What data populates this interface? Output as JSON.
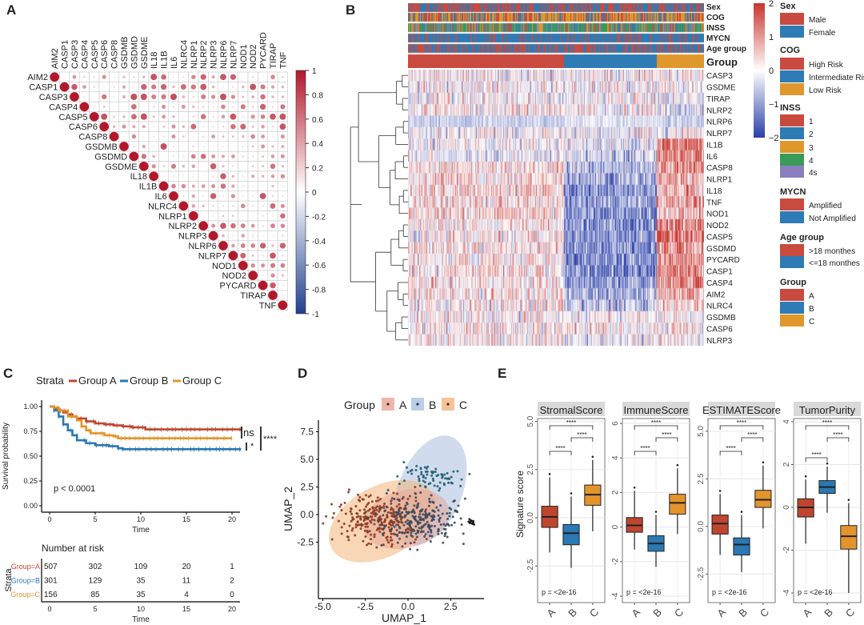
{
  "panel_labels": {
    "a": "A",
    "b": "B",
    "c": "C",
    "d": "D",
    "e": "E"
  },
  "chart_data": [
    {
      "panel": "A",
      "type": "heatmap",
      "title": "",
      "labels": [
        "AIM2",
        "CASP1",
        "CASP3",
        "CASP4",
        "CASP5",
        "CASP6",
        "CASP8",
        "GSDMB",
        "GSDMD",
        "GSDME",
        "IL18",
        "IL1B",
        "IL6",
        "NLRC4",
        "NLRP1",
        "NLRP2",
        "NLRP3",
        "NLRP6",
        "NLRP7",
        "NOD1",
        "NOD2",
        "PYCARD",
        "TIRAP",
        "TNF"
      ],
      "value_range": [
        -1,
        1
      ],
      "colorbar_ticks": [
        "1",
        "0.8",
        "0.6",
        "0.4",
        "0.2",
        "0",
        "-0.2",
        "-0.4",
        "-0.6",
        "-0.8",
        "-1"
      ],
      "colors": {
        "pos": "#b2182b",
        "neg": "#2166ac",
        "mid": "#ffffff"
      }
    },
    {
      "panel": "B",
      "type": "heatmap",
      "annotation_tracks": [
        "Sex",
        "COG",
        "INSS",
        "MYCN",
        "Age group",
        "Group"
      ],
      "genes": [
        "CASP3",
        "GSDME",
        "TIRAP",
        "NLRP2",
        "NLRP6",
        "NLRP7",
        "IL1B",
        "IL6",
        "CASP8",
        "NLRP1",
        "IL18",
        "TNF",
        "NOD1",
        "NOD2",
        "CASP5",
        "GSDMD",
        "PYCARD",
        "CASP1",
        "CASP4",
        "AIM2",
        "NLRC4",
        "GSDMB",
        "CASP6",
        "NLRP3"
      ],
      "group_sizes": {
        "A": 507,
        "B": 301,
        "C": 156
      },
      "group_means": [
        [
          0.1,
          0,
          0.1
        ],
        [
          0,
          0,
          0
        ],
        [
          0,
          0,
          -0.1
        ],
        [
          0.1,
          0,
          -0.2
        ],
        [
          -0.4,
          -0.2,
          -0.4
        ],
        [
          0,
          0,
          0
        ],
        [
          0,
          -0.2,
          1.0
        ],
        [
          -0.2,
          -0.3,
          0.9
        ],
        [
          0.2,
          -0.5,
          0.8
        ],
        [
          0.3,
          -0.6,
          0.6
        ],
        [
          0.3,
          -0.8,
          0.5
        ],
        [
          0.2,
          -0.7,
          0.6
        ],
        [
          0.3,
          -0.8,
          0.4
        ],
        [
          0.1,
          -0.9,
          1.0
        ],
        [
          0.1,
          -0.8,
          1.0
        ],
        [
          0.2,
          -0.9,
          0.8
        ],
        [
          0.2,
          -0.9,
          0.8
        ],
        [
          0.2,
          -0.9,
          1.0
        ],
        [
          0.2,
          -0.8,
          0.9
        ],
        [
          0.2,
          -0.6,
          0.5
        ],
        [
          0.1,
          -0.4,
          0.3
        ],
        [
          0,
          0,
          0
        ],
        [
          0.1,
          0.1,
          0
        ],
        [
          0.1,
          -0.1,
          0
        ]
      ],
      "value_range": [
        -2,
        2
      ],
      "colorbar_ticks": [
        "2",
        "1",
        "0",
        "−1",
        "−2"
      ],
      "legend": [
        {
          "title": "Sex",
          "items": [
            {
              "label": "Male",
              "color": "#c94a3f"
            },
            {
              "label": "Female",
              "color": "#2e7bb5"
            }
          ]
        },
        {
          "title": "COG",
          "items": [
            {
              "label": "High Risk",
              "color": "#c94a3f"
            },
            {
              "label": "Intermediate Risk",
              "color": "#2e7bb5"
            },
            {
              "label": "Low Risk",
              "color": "#e0972c"
            }
          ]
        },
        {
          "title": "INSS",
          "items": [
            {
              "label": "1",
              "color": "#c94a3f"
            },
            {
              "label": "2",
              "color": "#2e7bb5"
            },
            {
              "label": "3",
              "color": "#e0972c"
            },
            {
              "label": "4",
              "color": "#3a9a5a"
            },
            {
              "label": "4s",
              "color": "#8a7fbf"
            }
          ]
        },
        {
          "title": "MYCN",
          "items": [
            {
              "label": "Amplified",
              "color": "#c94a3f"
            },
            {
              "label": "Not Amplified",
              "color": "#2e7bb5"
            }
          ]
        },
        {
          "title": "Age group",
          "items": [
            {
              "label": ">18 monthes",
              "color": "#c94a3f"
            },
            {
              "label": "<=18 monthes",
              "color": "#2e7bb5"
            }
          ]
        },
        {
          "title": "Group",
          "items": [
            {
              "label": "A",
              "color": "#c94a3f"
            },
            {
              "label": "B",
              "color": "#2e7bb5"
            },
            {
              "label": "C",
              "color": "#e0972c"
            }
          ]
        }
      ]
    },
    {
      "panel": "C",
      "type": "line",
      "legend_title": "Strata",
      "series": [
        {
          "name": "Group A",
          "color": "#c0452f",
          "points": [
            [
              0,
              1
            ],
            [
              0.5,
              0.98
            ],
            [
              1,
              0.96
            ],
            [
              1.5,
              0.94
            ],
            [
              2,
              0.92
            ],
            [
              2.5,
              0.9
            ],
            [
              3,
              0.88
            ],
            [
              4,
              0.85
            ],
            [
              5,
              0.83
            ],
            [
              6,
              0.82
            ],
            [
              7,
              0.81
            ],
            [
              8,
              0.8
            ],
            [
              9,
              0.79
            ],
            [
              10.5,
              0.77
            ],
            [
              21,
              0.77
            ]
          ]
        },
        {
          "name": "Group B",
          "color": "#2a78b4",
          "points": [
            [
              0,
              1
            ],
            [
              0.5,
              0.96
            ],
            [
              1,
              0.9
            ],
            [
              1.5,
              0.82
            ],
            [
              2,
              0.76
            ],
            [
              2.5,
              0.71
            ],
            [
              3,
              0.66
            ],
            [
              4,
              0.63
            ],
            [
              5,
              0.61
            ],
            [
              6,
              0.61
            ],
            [
              6.5,
              0.6
            ],
            [
              7.5,
              0.58
            ],
            [
              8,
              0.57
            ],
            [
              21,
              0.57
            ]
          ]
        },
        {
          "name": "Group C",
          "color": "#e3942c",
          "points": [
            [
              0,
              1
            ],
            [
              0.5,
              0.99
            ],
            [
              1,
              0.96
            ],
            [
              2,
              0.9
            ],
            [
              3,
              0.86
            ],
            [
              3.5,
              0.8
            ],
            [
              4,
              0.76
            ],
            [
              4.5,
              0.73
            ],
            [
              6,
              0.71
            ],
            [
              7,
              0.7
            ],
            [
              7.5,
              0.68
            ],
            [
              20,
              0.68
            ]
          ]
        }
      ],
      "xlabel": "Time",
      "ylabel": "Survival probability",
      "xlim": [
        0,
        21
      ],
      "ylim": [
        0,
        1
      ],
      "xticks": [
        "0",
        "5",
        "10",
        "15",
        "20"
      ],
      "yticks": [
        "0.00",
        "0.25",
        "0.50",
        "0.75",
        "1.00"
      ],
      "pvalue": "p < 0.0001",
      "comparisons": [
        "ns",
        "*",
        "****"
      ],
      "risk_table": {
        "title": "Number at risk",
        "ylabel": "Strata",
        "rows": [
          {
            "label": "Group=A",
            "color": "#c0452f",
            "values": [
              "507",
              "302",
              "109",
              "20",
              "1"
            ]
          },
          {
            "label": "Group=B",
            "color": "#2a78b4",
            "values": [
              "301",
              "129",
              "35",
              "11",
              "2"
            ]
          },
          {
            "label": "Group=C",
            "color": "#e3942c",
            "values": [
              "156",
              "85",
              "35",
              "4",
              "0"
            ]
          }
        ],
        "xlabel": "Time"
      }
    },
    {
      "panel": "D",
      "type": "scatter",
      "legend_title": "Group",
      "groups": [
        {
          "name": "A",
          "fill": "#e8a494",
          "point": "#8b3a1f"
        },
        {
          "name": "B",
          "fill": "#a9bfe0",
          "point": "#3b4a5e"
        },
        {
          "name": "C",
          "fill": "#f2b57a",
          "point": "#c27a2a"
        }
      ],
      "xlabel": "UMAP_1",
      "ylabel": "UMAP_2",
      "xlim": [
        -5.5,
        4.2
      ],
      "ylim": [
        -4.5,
        8.5
      ],
      "xticks": [
        "-5.0",
        "-2.5",
        "0.0",
        "2.5"
      ],
      "yticks": [
        "-2.5",
        "0.0",
        "2.5",
        "5.0",
        "7.5"
      ]
    },
    {
      "panel": "E",
      "type": "box",
      "ylabel": "Signature score",
      "categories": [
        "A",
        "B",
        "C"
      ],
      "colors": [
        "#c0452f",
        "#2a78b4",
        "#e3942c"
      ],
      "facets": [
        {
          "title": "StromalScore",
          "ylim": [
            -4.4,
            5.15
          ],
          "ticks": [
            -2.5,
            0,
            2.5,
            5
          ],
          "tick_labels": [
            "-2.5",
            "0.0",
            "2.5",
            "5.0"
          ],
          "pvalue": "p = <2e-16",
          "boxes": [
            [
              -1.8,
              -0.5,
              0.05,
              0.6,
              2.1
            ],
            [
              -2.6,
              -1.4,
              -0.8,
              -0.35,
              1.1
            ],
            [
              -0.7,
              0.65,
              1.2,
              1.7,
              3.0
            ]
          ],
          "signif": [
            "****",
            "****",
            "****"
          ]
        },
        {
          "title": "ImmuneScore",
          "ylim": [
            -4.37,
            6.28
          ],
          "ticks": [
            -4,
            -2,
            0,
            2,
            4,
            6
          ],
          "tick_labels": [
            "-4",
            "-2",
            "0",
            "2",
            "4",
            "6"
          ],
          "pvalue": "p = <2e-16",
          "boxes": [
            [
              -1.3,
              -0.3,
              0.1,
              0.55,
              2.1
            ],
            [
              -2.3,
              -1.4,
              -0.95,
              -0.5,
              0.7
            ],
            [
              -0.4,
              0.75,
              1.4,
              1.9,
              3.4
            ]
          ],
          "signif": [
            "****",
            "****",
            "****"
          ]
        },
        {
          "title": "ESTIMATEScore",
          "ylim": [
            -4.0,
            5.67
          ],
          "ticks": [
            -2.5,
            0,
            2.5,
            5
          ],
          "tick_labels": [
            "-2.5",
            "0.0",
            "2.5",
            "5.0"
          ],
          "pvalue": "p = <2e-16",
          "boxes": [
            [
              -1.5,
              -0.4,
              0.15,
              0.6,
              1.7
            ],
            [
              -2.4,
              -1.5,
              -0.95,
              -0.6,
              0.6
            ],
            [
              -0.1,
              1.0,
              1.4,
              1.9,
              3.2
            ]
          ],
          "signif": [
            "****",
            "****",
            "****"
          ]
        },
        {
          "title": "TumorPurity",
          "ylim": [
            -4.45,
            4.15
          ],
          "ticks": [
            -4,
            -2,
            0,
            2,
            4
          ],
          "tick_labels": [
            "-4",
            "-2",
            "0",
            "2",
            "4"
          ],
          "pvalue": "p = <2e-16",
          "boxes": [
            [
              -1.7,
              -0.45,
              0.0,
              0.4,
              1.3
            ],
            [
              -0.25,
              0.65,
              0.95,
              1.25,
              1.9
            ],
            [
              -4.0,
              -1.95,
              -1.35,
              -0.85,
              0.2
            ]
          ],
          "signif": [
            "****",
            "****",
            "****"
          ]
        }
      ]
    }
  ]
}
